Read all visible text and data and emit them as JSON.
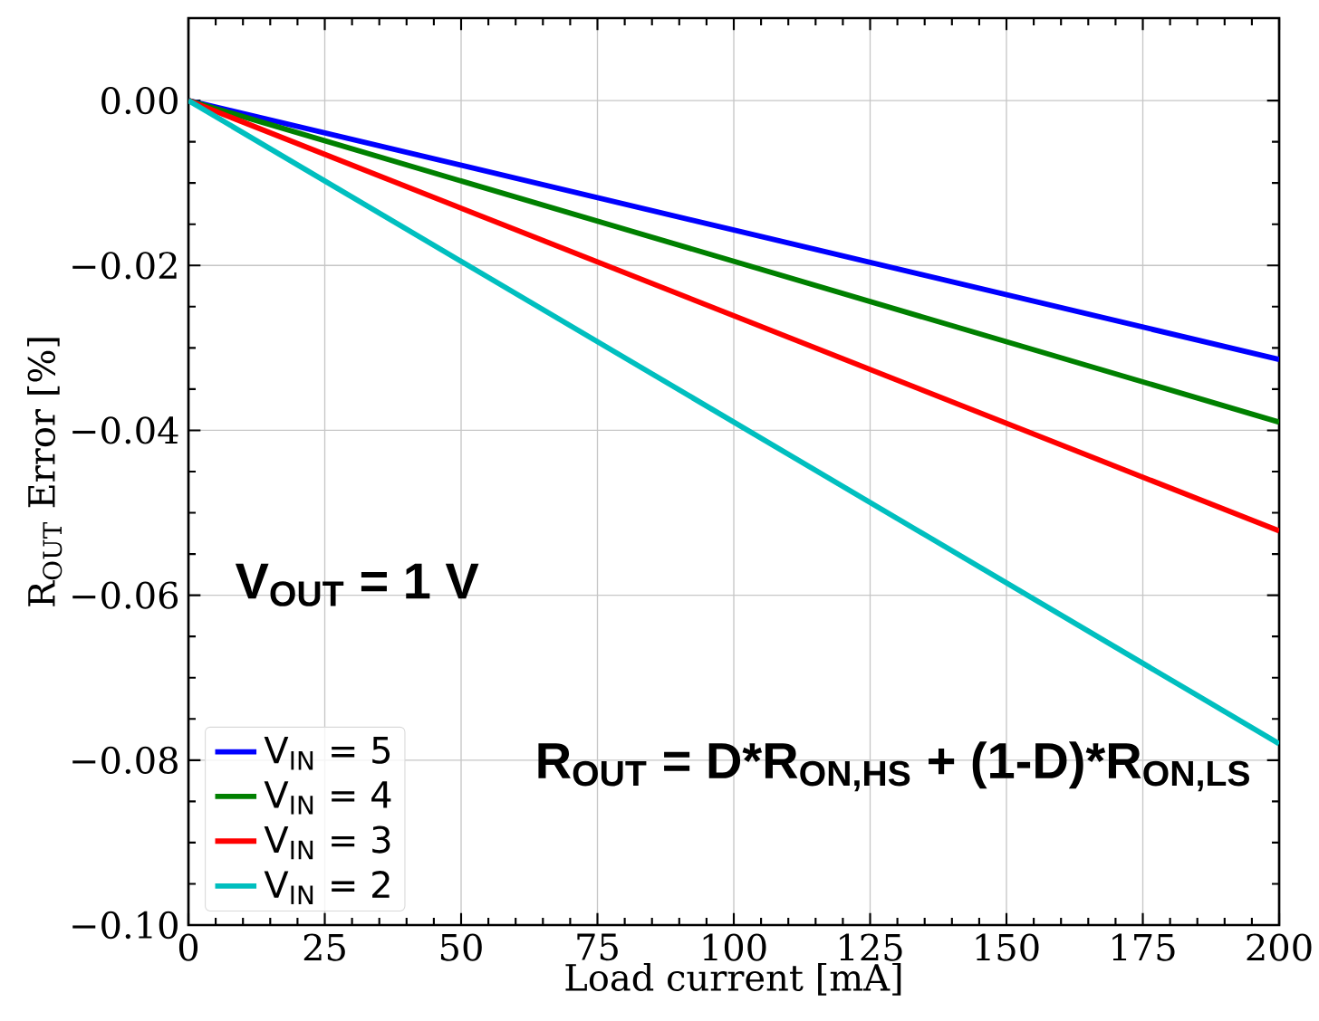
{
  "chart_data": {
    "type": "line",
    "xlabel": "Load current [mA]",
    "ylabel": "R$_{OUT}$ Error [%]",
    "x": [
      0,
      200
    ],
    "xlim": [
      0,
      200
    ],
    "xticks": [
      0,
      25,
      50,
      75,
      100,
      125,
      150,
      175,
      200
    ],
    "ylim": [
      -0.1,
      0.01
    ],
    "yticks": [
      {
        "value": 0,
        "label": "0.00"
      },
      {
        "value": -0.02,
        "label": "−0.02"
      },
      {
        "value": -0.04,
        "label": "−0.04"
      },
      {
        "value": -0.06,
        "label": "−0.06"
      },
      {
        "value": -0.08,
        "label": "−0.08"
      },
      {
        "value": -0.1,
        "label": "−0.10"
      }
    ],
    "grid": true,
    "legend": "bottom left",
    "line_style": "solid",
    "series": [
      {
        "name": "V$_{IN}$ = 5",
        "color": "#0000ff",
        "values": [
          0,
          -0.0314
        ]
      },
      {
        "name": "V$_{IN}$ = 4",
        "color": "#008000",
        "values": [
          0,
          -0.039
        ]
      },
      {
        "name": "V$_{IN}$ = 3",
        "color": "#ff0000",
        "values": [
          0,
          -0.0522
        ]
      },
      {
        "name": "V$_{IN}$ = 2",
        "color": "#00bfbf",
        "values": [
          0,
          -0.078
        ]
      }
    ],
    "annotations": [
      "V$_{OUT}$ = 1 V",
      "R$_{OUT}$ = D*R$_{ON,HS}$ + (1-D)*R$_{ON,LS}$"
    ]
  }
}
